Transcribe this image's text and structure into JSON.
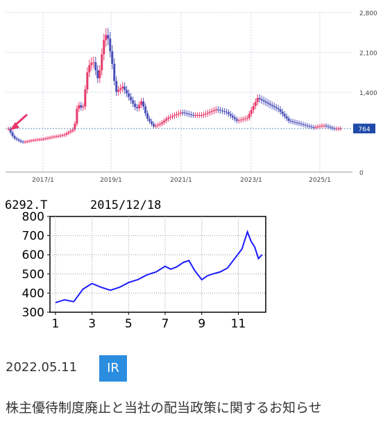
{
  "chart_top": {
    "type": "candlestick",
    "y_ticks": [
      "2,800",
      "2,100",
      "1,400",
      "0"
    ],
    "x_ticks": [
      "2017/1",
      "2019/1",
      "2021/1",
      "2023/1",
      "2025/1"
    ],
    "y_range": [
      0,
      2800
    ],
    "current_price": "764",
    "up_color": "#e8386a",
    "down_color": "#4a4fb8",
    "series_close": [
      [
        2016.0,
        760
      ],
      [
        2016.15,
        600
      ],
      [
        2016.4,
        520
      ],
      [
        2016.7,
        560
      ],
      [
        2017.0,
        580
      ],
      [
        2017.3,
        620
      ],
      [
        2017.6,
        650
      ],
      [
        2017.9,
        760
      ],
      [
        2018.0,
        1200
      ],
      [
        2018.15,
        1100
      ],
      [
        2018.3,
        1850
      ],
      [
        2018.45,
        1950
      ],
      [
        2018.6,
        1600
      ],
      [
        2018.75,
        2300
      ],
      [
        2018.85,
        2450
      ],
      [
        2019.0,
        1900
      ],
      [
        2019.1,
        1400
      ],
      [
        2019.3,
        1500
      ],
      [
        2019.5,
        1300
      ],
      [
        2019.7,
        1100
      ],
      [
        2019.85,
        1250
      ],
      [
        2020.0,
        950
      ],
      [
        2020.2,
        800
      ],
      [
        2020.4,
        850
      ],
      [
        2020.6,
        950
      ],
      [
        2020.8,
        1000
      ],
      [
        2021.0,
        1050
      ],
      [
        2021.3,
        1000
      ],
      [
        2021.6,
        1000
      ],
      [
        2022.0,
        1100
      ],
      [
        2022.3,
        1050
      ],
      [
        2022.6,
        900
      ],
      [
        2022.9,
        950
      ],
      [
        2023.2,
        1300
      ],
      [
        2023.5,
        1200
      ],
      [
        2023.8,
        1100
      ],
      [
        2024.1,
        900
      ],
      [
        2024.4,
        850
      ],
      [
        2024.8,
        780
      ],
      [
        2025.1,
        820
      ],
      [
        2025.4,
        760
      ],
      [
        2025.6,
        764
      ]
    ]
  },
  "chart_bottom": {
    "type": "line",
    "header": "6292.T",
    "date": "2015/12/18",
    "y_ticks": [
      "800",
      "700",
      "600",
      "500",
      "400",
      "300"
    ],
    "x_ticks": [
      "1",
      "3",
      "5",
      "7",
      "9",
      "11"
    ],
    "y_range": [
      300,
      800
    ],
    "line_color": "#1a1aff",
    "series": [
      [
        1.0,
        350
      ],
      [
        1.5,
        365
      ],
      [
        2.0,
        355
      ],
      [
        2.5,
        420
      ],
      [
        3.0,
        450
      ],
      [
        3.5,
        430
      ],
      [
        4.0,
        415
      ],
      [
        4.5,
        430
      ],
      [
        5.0,
        455
      ],
      [
        5.5,
        470
      ],
      [
        6.0,
        495
      ],
      [
        6.5,
        510
      ],
      [
        7.0,
        540
      ],
      [
        7.3,
        525
      ],
      [
        7.6,
        535
      ],
      [
        8.0,
        560
      ],
      [
        8.3,
        570
      ],
      [
        8.6,
        520
      ],
      [
        9.0,
        470
      ],
      [
        9.3,
        490
      ],
      [
        9.6,
        500
      ],
      [
        10.0,
        510
      ],
      [
        10.4,
        530
      ],
      [
        10.8,
        580
      ],
      [
        11.2,
        630
      ],
      [
        11.5,
        720
      ],
      [
        11.7,
        670
      ],
      [
        11.9,
        640
      ],
      [
        12.1,
        580
      ],
      [
        12.3,
        600
      ]
    ]
  },
  "news": {
    "date": "2022.05.11",
    "tag": "IR",
    "title": "株主優待制度廃止と当社の配当政策に関するお知らせ"
  }
}
